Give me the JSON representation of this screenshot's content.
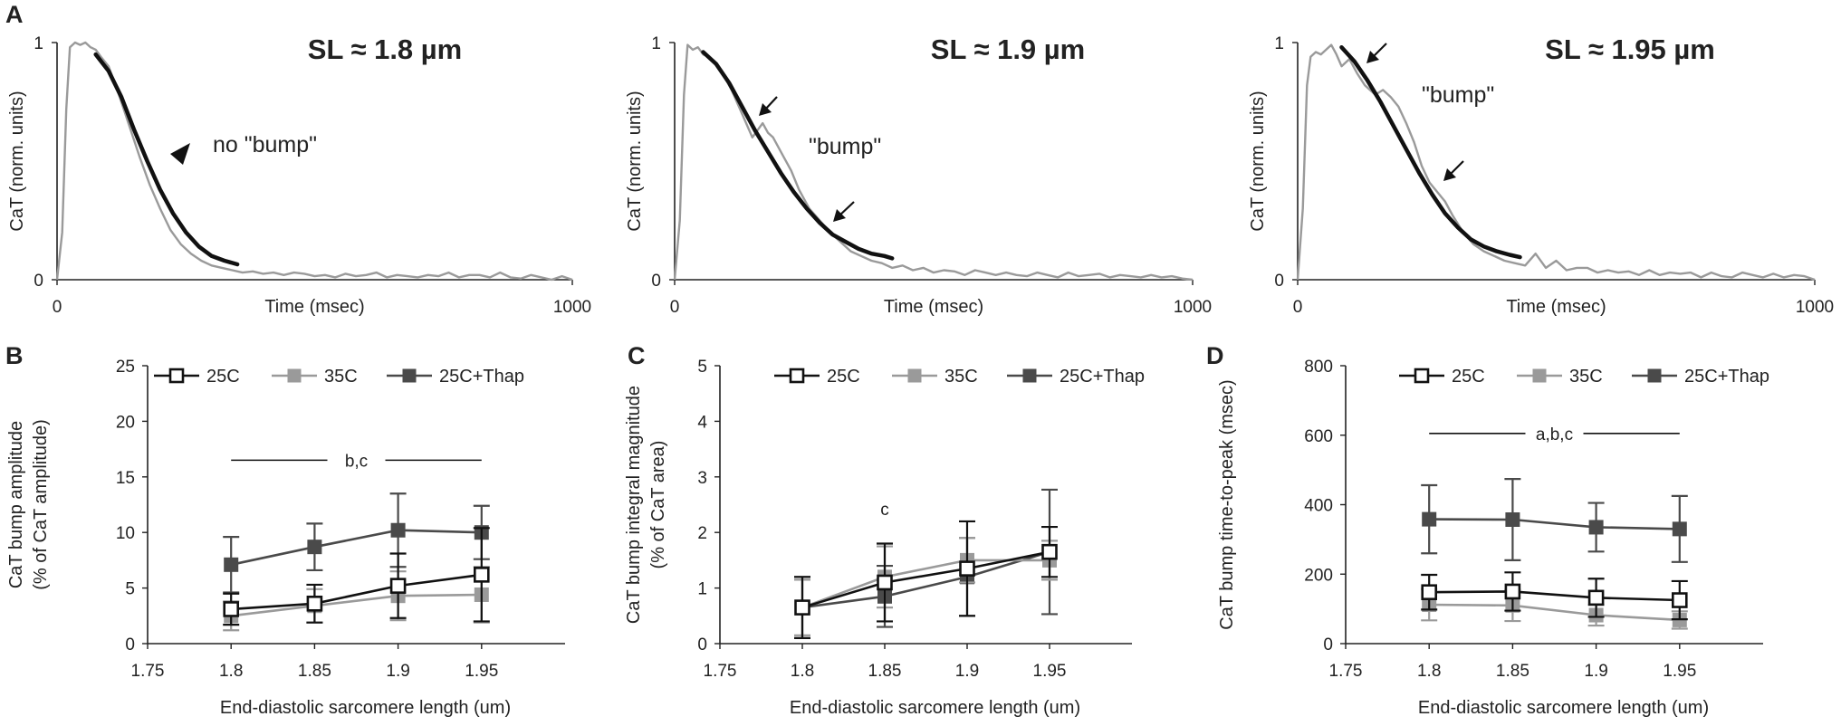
{
  "colors": {
    "black": "#111111",
    "raw_trace": "#9a9a9a",
    "c25": "#111111",
    "c35": "#9a9a9a",
    "c25thap": "#4a4a4a"
  },
  "chart_data": [
    {
      "panel": "A",
      "type": "line",
      "title": "SL ≈ 1.8 µm",
      "xlabel": "Time (msec)",
      "ylabel": "CaT (norm. units)",
      "xlim": [
        0,
        1000
      ],
      "ylim": [
        0,
        1
      ],
      "x_ticks": [
        "0",
        "1000"
      ],
      "y_ticks": [
        "0",
        "1"
      ],
      "annotation": "no \"bump\"",
      "marker": "arrowhead",
      "fit_end_ms": 350,
      "raw_trace": {
        "x": [
          0,
          10,
          18,
          25,
          35,
          45,
          55,
          65,
          75,
          85,
          100,
          120,
          140,
          160,
          180,
          200,
          220,
          240,
          260,
          280,
          300,
          320,
          340,
          360,
          380,
          400,
          420,
          440,
          460,
          480,
          500,
          520,
          540,
          560,
          580,
          600,
          620,
          640,
          660,
          680,
          700,
          720,
          740,
          760,
          780,
          800,
          820,
          840,
          860,
          880,
          900,
          920,
          940,
          960,
          980,
          1000
        ],
        "y": [
          0.0,
          0.2,
          0.72,
          0.98,
          1.0,
          0.99,
          1.0,
          0.98,
          0.97,
          0.94,
          0.9,
          0.78,
          0.65,
          0.52,
          0.4,
          0.3,
          0.21,
          0.15,
          0.11,
          0.08,
          0.06,
          0.05,
          0.04,
          0.03,
          0.035,
          0.025,
          0.03,
          0.02,
          0.03,
          0.025,
          0.015,
          0.02,
          0.01,
          0.025,
          0.015,
          0.02,
          0.03,
          0.01,
          0.02,
          0.015,
          0.01,
          0.02,
          0.015,
          0.03,
          0.01,
          0.02,
          0.02,
          0.01,
          0.03,
          0.01,
          0.005,
          0.02,
          0.01,
          0.0,
          0.015,
          0.0
        ]
      },
      "fit": {
        "x": [
          75,
          100,
          125,
          150,
          175,
          200,
          225,
          250,
          275,
          300,
          325,
          350
        ],
        "y": [
          0.95,
          0.88,
          0.77,
          0.63,
          0.5,
          0.38,
          0.28,
          0.2,
          0.14,
          0.1,
          0.08,
          0.065
        ]
      }
    },
    {
      "panel": "A",
      "type": "line",
      "title": "SL ≈ 1.9 µm",
      "xlabel": "Time (msec)",
      "ylabel": "CaT (norm. units)",
      "xlim": [
        0,
        1000
      ],
      "ylim": [
        0,
        1
      ],
      "x_ticks": [
        "0",
        "1000"
      ],
      "y_ticks": [
        "0",
        "1"
      ],
      "annotation": "\"bump\"",
      "marker": "arrows",
      "fit_end_ms": 420,
      "raw_trace": {
        "x": [
          0,
          10,
          18,
          25,
          35,
          45,
          55,
          65,
          75,
          90,
          110,
          130,
          150,
          170,
          180,
          190,
          200,
          210,
          225,
          240,
          260,
          280,
          300,
          320,
          340,
          360,
          380,
          400,
          420,
          440,
          460,
          480,
          500,
          520,
          540,
          560,
          580,
          600,
          620,
          640,
          660,
          680,
          700,
          720,
          740,
          760,
          780,
          800,
          820,
          840,
          860,
          880,
          900,
          920,
          940,
          960,
          980,
          1000
        ],
        "y": [
          0.0,
          0.25,
          0.78,
          0.99,
          0.97,
          0.98,
          0.95,
          0.94,
          0.92,
          0.88,
          0.8,
          0.7,
          0.6,
          0.66,
          0.62,
          0.6,
          0.56,
          0.52,
          0.46,
          0.38,
          0.3,
          0.25,
          0.2,
          0.16,
          0.12,
          0.1,
          0.08,
          0.07,
          0.05,
          0.06,
          0.04,
          0.05,
          0.03,
          0.04,
          0.035,
          0.02,
          0.04,
          0.03,
          0.02,
          0.03,
          0.02,
          0.015,
          0.03,
          0.02,
          0.01,
          0.03,
          0.015,
          0.02,
          0.025,
          0.01,
          0.02,
          0.015,
          0.01,
          0.02,
          0.01,
          0.015,
          0.005,
          0.0
        ]
      },
      "fit": {
        "x": [
          55,
          80,
          105,
          130,
          155,
          180,
          205,
          230,
          255,
          280,
          305,
          330,
          355,
          380,
          405,
          420
        ],
        "y": [
          0.96,
          0.91,
          0.83,
          0.73,
          0.63,
          0.54,
          0.45,
          0.37,
          0.3,
          0.24,
          0.19,
          0.16,
          0.13,
          0.11,
          0.1,
          0.09
        ]
      }
    },
    {
      "panel": "A",
      "type": "line",
      "title": "SL ≈ 1.95 µm",
      "xlabel": "Time (msec)",
      "ylabel": "CaT (norm. units)",
      "xlim": [
        0,
        1000
      ],
      "ylim": [
        0,
        1
      ],
      "x_ticks": [
        "0",
        "1000"
      ],
      "y_ticks": [
        "0",
        "1"
      ],
      "annotation": "\"bump\"",
      "marker": "arrows",
      "fit_end_ms": 430,
      "raw_trace": {
        "x": [
          0,
          10,
          18,
          25,
          35,
          45,
          55,
          65,
          75,
          85,
          100,
          115,
          130,
          150,
          165,
          180,
          195,
          210,
          225,
          240,
          255,
          270,
          285,
          300,
          320,
          340,
          360,
          380,
          400,
          420,
          440,
          460,
          480,
          500,
          520,
          540,
          560,
          580,
          600,
          620,
          640,
          660,
          680,
          700,
          720,
          740,
          760,
          780,
          800,
          820,
          840,
          860,
          880,
          900,
          920,
          940,
          960,
          980,
          1000
        ],
        "y": [
          0.0,
          0.3,
          0.82,
          0.94,
          0.96,
          0.95,
          0.97,
          0.99,
          0.95,
          0.9,
          0.93,
          0.87,
          0.82,
          0.78,
          0.8,
          0.77,
          0.73,
          0.66,
          0.58,
          0.48,
          0.41,
          0.37,
          0.33,
          0.27,
          0.2,
          0.15,
          0.12,
          0.1,
          0.08,
          0.07,
          0.06,
          0.11,
          0.05,
          0.08,
          0.04,
          0.05,
          0.05,
          0.03,
          0.04,
          0.03,
          0.035,
          0.02,
          0.04,
          0.02,
          0.03,
          0.025,
          0.03,
          0.01,
          0.03,
          0.015,
          0.01,
          0.03,
          0.02,
          0.01,
          0.025,
          0.01,
          0.02,
          0.015,
          0.0
        ]
      },
      "fit": {
        "x": [
          85,
          110,
          135,
          160,
          185,
          210,
          235,
          260,
          285,
          310,
          335,
          360,
          385,
          410,
          430
        ],
        "y": [
          0.98,
          0.92,
          0.84,
          0.75,
          0.65,
          0.55,
          0.45,
          0.36,
          0.28,
          0.22,
          0.17,
          0.14,
          0.12,
          0.105,
          0.095
        ]
      }
    },
    {
      "panel": "B",
      "type": "line",
      "xlabel": "End-diastolic sarcomere length (um)",
      "ylabel_lines": [
        "CaT bump amplitude",
        "(% of CaT amplitude)"
      ],
      "xlim": [
        1.75,
        2.0
      ],
      "ylim": [
        0,
        25
      ],
      "x_ticks": [
        "1.75",
        "1.8",
        "1.85",
        "1.9",
        "1.95"
      ],
      "y_ticks": [
        "0",
        "5",
        "10",
        "15",
        "20",
        "25"
      ],
      "x_tick_values": [
        1.75,
        1.8,
        1.85,
        1.9,
        1.95
      ],
      "y_tick_values": [
        0,
        5,
        10,
        15,
        20,
        25
      ],
      "categories": [
        1.8,
        1.85,
        1.9,
        1.95
      ],
      "series": [
        {
          "name": "25C",
          "marker": "open",
          "values": [
            3.1,
            3.6,
            5.2,
            6.2
          ],
          "err": [
            1.4,
            1.7,
            2.9,
            4.2
          ]
        },
        {
          "name": "35C",
          "marker": "light",
          "values": [
            2.5,
            3.4,
            4.3,
            4.4
          ],
          "err": [
            1.3,
            1.5,
            2.2,
            2.5
          ]
        },
        {
          "name": "25C+Thap",
          "marker": "dark",
          "values": [
            7.1,
            8.7,
            10.2,
            10.0
          ],
          "err": [
            2.5,
            2.1,
            3.3,
            2.4
          ]
        }
      ],
      "significance": {
        "label": "b,c",
        "y": 16.5,
        "x_from": 1.8,
        "x_to": 1.95
      }
    },
    {
      "panel": "C",
      "type": "line",
      "xlabel": "End-diastolic sarcomere length (um)",
      "ylabel_lines": [
        "CaT bump integral magnitude",
        "(% of CaT area)"
      ],
      "xlim": [
        1.75,
        2.0
      ],
      "ylim": [
        0,
        5
      ],
      "x_ticks": [
        "1.75",
        "1.8",
        "1.85",
        "1.9",
        "1.95"
      ],
      "y_ticks": [
        "0",
        "1",
        "2",
        "3",
        "4",
        "5"
      ],
      "x_tick_values": [
        1.75,
        1.8,
        1.85,
        1.9,
        1.95
      ],
      "y_tick_values": [
        0,
        1,
        2,
        3,
        4,
        5
      ],
      "categories": [
        1.8,
        1.85,
        1.9,
        1.95
      ],
      "series": [
        {
          "name": "25C",
          "marker": "open",
          "values": [
            0.65,
            1.1,
            1.35,
            1.65
          ],
          "err": [
            0.55,
            0.7,
            0.85,
            0.45
          ]
        },
        {
          "name": "35C",
          "marker": "light",
          "values": [
            0.65,
            1.2,
            1.5,
            1.5
          ],
          "err": [
            0.5,
            0.55,
            0.4,
            0.35
          ]
        },
        {
          "name": "25C+Thap",
          "marker": "dark",
          "values": [
            0.65,
            0.85,
            1.2,
            1.65
          ],
          "err": [
            0.55,
            0.55,
            0.7,
            1.12
          ]
        }
      ],
      "significance": {
        "label": "c",
        "y": 2.43,
        "x": 1.85
      }
    },
    {
      "panel": "D",
      "type": "line",
      "xlabel": "End-diastolic sarcomere length (um)",
      "ylabel_lines": [
        "CaT bump time-to-peak (msec)"
      ],
      "xlim": [
        1.75,
        2.0
      ],
      "ylim": [
        0,
        800
      ],
      "x_ticks": [
        "1.75",
        "1.8",
        "1.85",
        "1.9",
        "1.95"
      ],
      "y_ticks": [
        "0",
        "200",
        "400",
        "600",
        "800"
      ],
      "x_tick_values": [
        1.75,
        1.8,
        1.85,
        1.9,
        1.95
      ],
      "y_tick_values": [
        0,
        200,
        400,
        600,
        800
      ],
      "categories": [
        1.8,
        1.85,
        1.9,
        1.95
      ],
      "series": [
        {
          "name": "25C",
          "marker": "open",
          "values": [
            148,
            150,
            132,
            125
          ],
          "err": [
            50,
            55,
            55,
            55
          ]
        },
        {
          "name": "35C",
          "marker": "light",
          "values": [
            112,
            110,
            82,
            68
          ],
          "err": [
            45,
            45,
            30,
            25
          ]
        },
        {
          "name": "25C+Thap",
          "marker": "dark",
          "values": [
            358,
            357,
            335,
            330
          ],
          "err": [
            98,
            117,
            70,
            95
          ]
        }
      ],
      "significance": {
        "label": "a,b,c",
        "y": 605,
        "x_from": 1.8,
        "x_to": 1.95
      }
    }
  ],
  "panel_labels": {
    "a": "A",
    "b": "B",
    "c": "C",
    "d": "D"
  }
}
